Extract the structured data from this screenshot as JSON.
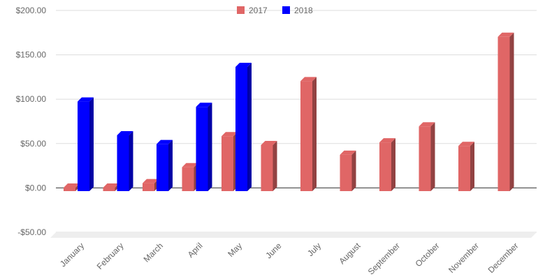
{
  "chart_data": {
    "type": "bar",
    "categories": [
      "January",
      "February",
      "March",
      "April",
      "May",
      "June",
      "July",
      "August",
      "September",
      "October",
      "November",
      "December"
    ],
    "series": [
      {
        "name": "2017",
        "color": "#e06666",
        "values": [
          0,
          0,
          5,
          23,
          58,
          48,
          120,
          37,
          51,
          69,
          47,
          170
        ]
      },
      {
        "name": "2018",
        "color": "#0000ff",
        "values": [
          97,
          59,
          49,
          91,
          136,
          null,
          null,
          null,
          null,
          null,
          null,
          null
        ]
      }
    ],
    "ylim": [
      -50,
      200
    ],
    "yticks": [
      -50,
      0,
      50,
      100,
      150,
      200
    ],
    "ytick_labels": [
      "-$50.00",
      "$0.00",
      "$50.00",
      "$100.00",
      "$150.00",
      "$200.00"
    ],
    "legend_position": "top-center",
    "grid": true,
    "style": "3d-column"
  }
}
